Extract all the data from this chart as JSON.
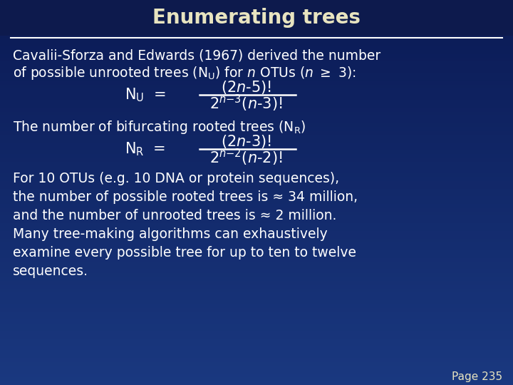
{
  "title": "Enumerating trees",
  "bg_color": "#0d2366",
  "title_bg_color": "#0a1a55",
  "title_color": "#e8e4c0",
  "text_color": "#ffffff",
  "line_color": "#cccccc",
  "title_fontsize": 20,
  "body_fontsize": 13.5,
  "formula_fontsize": 15,
  "page_label": "Page 235",
  "line1": "Cavalii-Sforza and Edwards (1967) derived the number",
  "line2_plain": "of possible unrooted trees (N",
  "line2_sub": "U",
  "line2_rest": ") for ",
  "line2_italic": "n",
  "line2_end": " OTUs (",
  "line2_n2": "n",
  "line2_geq": " ≥ 3):",
  "bifurc_line": "The number of bifurcating rooted trees (N",
  "bifurc_sub": "R",
  "bifurc_end": ")",
  "bottom_lines": [
    "For 10 OTUs (e.g. 10 DNA or protein sequences),",
    "the number of possible rooted trees is ≈ 34 million,",
    "and the number of unrooted trees is ≈ 2 million.",
    "Many tree-making algorithms can exhaustively",
    "examine every possible tree for up to ten to twelve",
    "sequences."
  ]
}
